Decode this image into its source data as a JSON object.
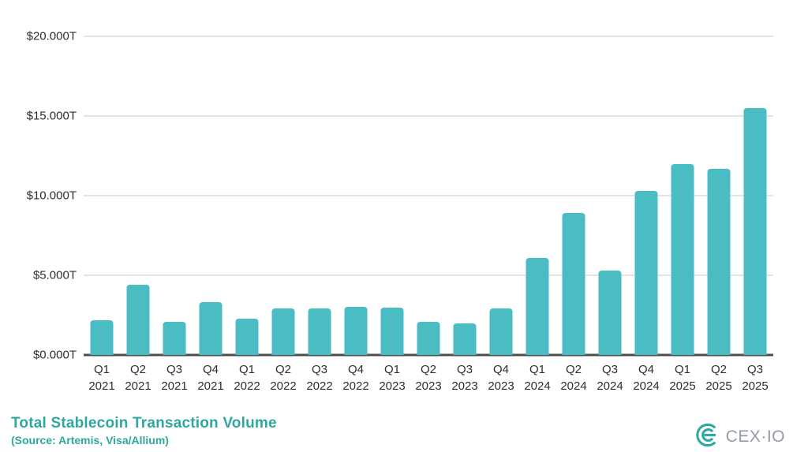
{
  "chart_data": {
    "type": "bar",
    "title": "Total Stablecoin Transaction Volume",
    "subtitle": "(Source: Artemis, Visa/Allium)",
    "unit": "trillions USD per quarter",
    "categories": [
      "Q1 2021",
      "Q2 2021",
      "Q3 2021",
      "Q4 2021",
      "Q1 2022",
      "Q2 2022",
      "Q3 2022",
      "Q4 2022",
      "Q1 2023",
      "Q2 2023",
      "Q3 2023",
      "Q4 2023",
      "Q1 2024",
      "Q2 2024",
      "Q3 2024",
      "Q4 2024",
      "Q1 2025",
      "Q2 2025",
      "Q3 2025"
    ],
    "values": [
      2.2,
      4.4,
      2.1,
      3.3,
      2.3,
      2.9,
      2.9,
      3.0,
      2.95,
      2.1,
      2.0,
      2.9,
      6.1,
      8.9,
      5.3,
      10.3,
      12.0,
      11.7,
      15.5
    ],
    "ylim": [
      0,
      20
    ],
    "yticks": [
      {
        "value": 0,
        "label": "$0.000T"
      },
      {
        "value": 5,
        "label": "$5.000T"
      },
      {
        "value": 10,
        "label": "$10.000T"
      },
      {
        "value": 15,
        "label": "$15.000T"
      },
      {
        "value": 20,
        "label": "$20.000T"
      }
    ],
    "grid": true,
    "legend": "none"
  },
  "footer": {
    "title": "Total Stablecoin Transaction Volume",
    "subtitle": "(Source: Artemis, Visa/Allium)",
    "logo_text": "CEX·IO"
  },
  "colors": {
    "bar": "#49BCC4",
    "gridline": "#e3e3e3",
    "axis_line": "#4d4d4d",
    "axis_text": "#2e2e2e",
    "accent_teal": "#2ea89e",
    "logo_gray": "#949ba3"
  }
}
